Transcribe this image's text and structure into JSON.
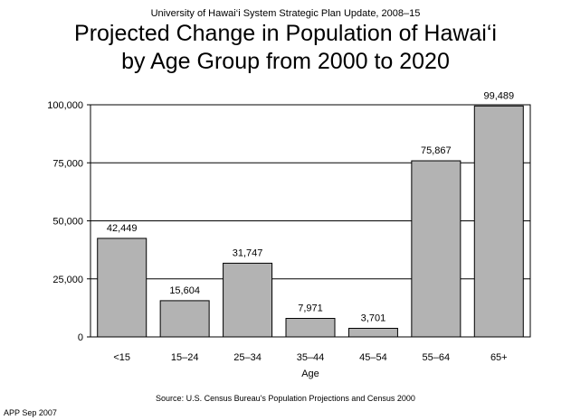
{
  "header": {
    "supertitle": "University of Hawai‘i System Strategic Plan Update, 2008–15",
    "title_line1": "Projected Change in Population of Hawai‘i",
    "title_line2": "by Age Group from 2000 to 2020"
  },
  "chart_data": {
    "type": "bar",
    "title": "Projected Change in Population of Hawai‘i by Age Group from 2000 to 2020",
    "categories": [
      "<15",
      "15–24",
      "25–34",
      "35–44",
      "45–54",
      "55–64",
      "65+"
    ],
    "values": [
      42449,
      15604,
      31747,
      7971,
      3701,
      75867,
      99489
    ],
    "value_labels": [
      "42,449",
      "15,604",
      "31,747",
      "7,971",
      "3,701",
      "75,867",
      "99,489"
    ],
    "xlabel": "Age",
    "ylabel": "",
    "ylim": [
      0,
      100000
    ],
    "yticks": [
      0,
      25000,
      50000,
      75000,
      100000
    ],
    "ytick_labels": [
      "0",
      "25,000",
      "50,000",
      "75,000",
      "100,000"
    ],
    "grid": true,
    "legend": "none",
    "bar_color": "#b3b3b3",
    "edge_color": "#000000"
  },
  "source_text": "Source:   U.S. Census Bureau's Population Projections and Census 2000",
  "footer_text": "APP Sep 2007"
}
